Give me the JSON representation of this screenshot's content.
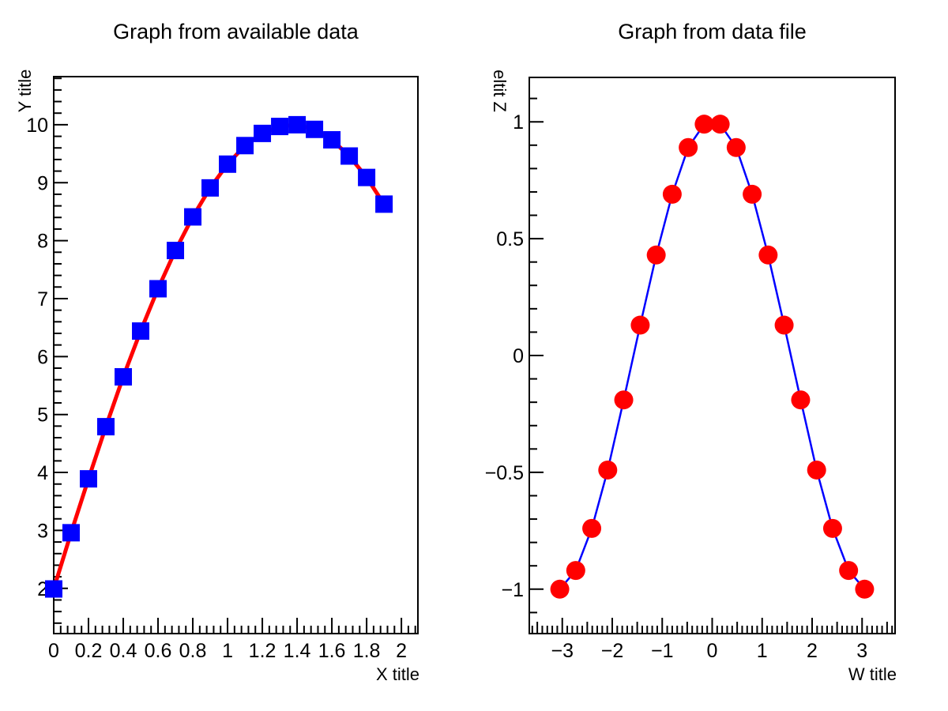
{
  "canvas": {
    "background": "#ffffff",
    "frame_color": "#000000"
  },
  "chart_data": [
    {
      "type": "line",
      "title": "Graph from available data",
      "xlabel": "X title",
      "ylabel": "Y title",
      "ylabel_orientation": "bottom-to-top",
      "x": [
        0,
        0.1,
        0.2,
        0.3,
        0.4,
        0.5,
        0.6,
        0.7,
        0.8,
        0.9,
        1.0,
        1.1,
        1.2,
        1.3,
        1.4,
        1.5,
        1.6,
        1.7,
        1.8,
        1.9
      ],
      "y": [
        1.99,
        2.96,
        3.89,
        4.79,
        5.65,
        6.44,
        7.17,
        7.83,
        8.41,
        8.91,
        9.32,
        9.64,
        9.85,
        9.97,
        10.0,
        9.92,
        9.74,
        9.46,
        9.09,
        8.63
      ],
      "xlim": [
        0,
        2.095
      ],
      "ylim": [
        1.22,
        10.83
      ],
      "x_major_ticks": {
        "values": [
          0,
          0.2,
          0.4,
          0.6,
          0.8,
          1,
          1.2,
          1.4,
          1.6,
          1.8,
          2
        ],
        "labels": [
          "0",
          "0.2",
          "0.4",
          "0.6",
          "0.8",
          "1",
          "1.2",
          "1.4",
          "1.6",
          "1.8",
          "2"
        ]
      },
      "x_minor_step": 0.04,
      "y_major_ticks": {
        "values": [
          2,
          3,
          4,
          5,
          6,
          7,
          8,
          9,
          10
        ],
        "labels": [
          "2",
          "3",
          "4",
          "5",
          "6",
          "7",
          "8",
          "9",
          "10"
        ]
      },
      "y_minor_step": 0.2,
      "grid": false,
      "legend": null,
      "marker": {
        "shape": "square",
        "color": "#0000ff",
        "size": 22
      },
      "line": {
        "color": "#ff0000",
        "width": 5
      }
    },
    {
      "type": "line",
      "title": "Graph from data file",
      "xlabel": "W title",
      "ylabel": "Z title",
      "ylabel_orientation": "top-to-bottom-flipped",
      "x": [
        -3.05,
        -2.73,
        -2.41,
        -2.09,
        -1.77,
        -1.44,
        -1.12,
        -0.8,
        -0.48,
        -0.16,
        0.16,
        0.48,
        0.8,
        1.12,
        1.44,
        1.77,
        2.09,
        2.41,
        2.73,
        3.05
      ],
      "y": [
        -1.0,
        -0.92,
        -0.74,
        -0.49,
        -0.19,
        0.13,
        0.43,
        0.69,
        0.89,
        0.99,
        0.99,
        0.89,
        0.69,
        0.43,
        0.13,
        -0.19,
        -0.49,
        -0.74,
        -0.92,
        -1.0
      ],
      "xlim": [
        -3.66,
        3.66
      ],
      "ylim": [
        -1.19,
        1.19
      ],
      "x_major_ticks": {
        "values": [
          -3,
          -2,
          -1,
          0,
          1,
          2,
          3
        ],
        "labels": [
          "−3",
          "−2",
          "−1",
          "0",
          "1",
          "2",
          "3"
        ]
      },
      "x_minor_step": 0.1,
      "x_medium_step": 0.5,
      "y_major_ticks": {
        "values": [
          -1,
          -0.5,
          0,
          0.5,
          1
        ],
        "labels": [
          "−1",
          "−0.5",
          "0",
          "0.5",
          "1"
        ]
      },
      "y_minor_step": 0.1,
      "grid": false,
      "legend": null,
      "marker": {
        "shape": "circle",
        "color": "#ff0000",
        "size": 24
      },
      "line": {
        "color": "#0000ff",
        "width": 2.5
      }
    }
  ]
}
